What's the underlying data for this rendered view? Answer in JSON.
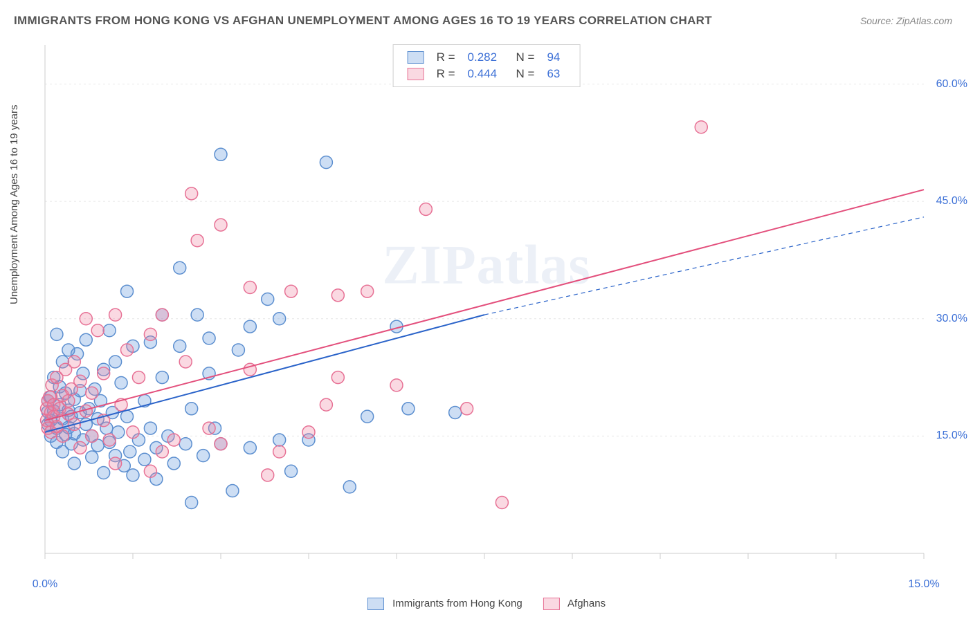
{
  "title": "IMMIGRANTS FROM HONG KONG VS AFGHAN UNEMPLOYMENT AMONG AGES 16 TO 19 YEARS CORRELATION CHART",
  "source": "Source: ZipAtlas.com",
  "watermark": "ZIPatlas",
  "ylabel": "Unemployment Among Ages 16 to 19 years",
  "chart": {
    "type": "scatter",
    "background_color": "#ffffff",
    "grid_color": "#e6e6e6",
    "axis_color": "#cccccc",
    "xlim": [
      0,
      15
    ],
    "ylim": [
      0,
      65
    ],
    "yticks": [
      15,
      30,
      45,
      60
    ],
    "ytick_labels": [
      "15.0%",
      "30.0%",
      "45.0%",
      "60.0%"
    ],
    "xticks": [
      0,
      15
    ],
    "xtick_labels": [
      "0.0%",
      "15.0%"
    ],
    "xtick_marks": [
      0,
      1.5,
      3,
      4.5,
      6,
      7.5,
      9,
      10.5,
      12,
      13.5,
      15
    ],
    "marker_radius": 9,
    "marker_stroke_width": 1.5,
    "line_width": 2,
    "series": [
      {
        "label": "Immigrants from Hong Kong",
        "fill_color": "rgba(98,152,220,0.32)",
        "stroke_color": "#5b8ecf",
        "line_color": "#2a63c9",
        "r_value": "0.282",
        "n_value": "94",
        "reg_solid_x": [
          0,
          7.5
        ],
        "reg_solid_y": [
          15.5,
          30.5
        ],
        "reg_dash_x": [
          7.5,
          15
        ],
        "reg_dash_y": [
          30.5,
          43.0
        ],
        "points": [
          [
            0.05,
            18.1
          ],
          [
            0.05,
            16.5
          ],
          [
            0.05,
            19.5
          ],
          [
            0.1,
            17.0
          ],
          [
            0.1,
            15.0
          ],
          [
            0.1,
            20.0
          ],
          [
            0.15,
            22.5
          ],
          [
            0.15,
            18.2
          ],
          [
            0.2,
            16.0
          ],
          [
            0.2,
            14.2
          ],
          [
            0.2,
            28.0
          ],
          [
            0.25,
            19.0
          ],
          [
            0.25,
            21.3
          ],
          [
            0.3,
            17.2
          ],
          [
            0.3,
            24.5
          ],
          [
            0.3,
            13.0
          ],
          [
            0.35,
            15.2
          ],
          [
            0.35,
            20.5
          ],
          [
            0.4,
            18.3
          ],
          [
            0.4,
            16.1
          ],
          [
            0.4,
            26.0
          ],
          [
            0.45,
            14.0
          ],
          [
            0.45,
            17.5
          ],
          [
            0.5,
            19.7
          ],
          [
            0.5,
            15.3
          ],
          [
            0.5,
            11.5
          ],
          [
            0.55,
            25.5
          ],
          [
            0.6,
            18.0
          ],
          [
            0.6,
            20.8
          ],
          [
            0.65,
            14.5
          ],
          [
            0.65,
            23.0
          ],
          [
            0.7,
            16.5
          ],
          [
            0.7,
            27.3
          ],
          [
            0.75,
            18.5
          ],
          [
            0.8,
            15.0
          ],
          [
            0.8,
            12.3
          ],
          [
            0.85,
            21.0
          ],
          [
            0.9,
            17.2
          ],
          [
            0.9,
            13.8
          ],
          [
            0.95,
            19.5
          ],
          [
            1.0,
            10.3
          ],
          [
            1.0,
            23.5
          ],
          [
            1.05,
            16.0
          ],
          [
            1.1,
            14.2
          ],
          [
            1.1,
            28.5
          ],
          [
            1.15,
            18.0
          ],
          [
            1.2,
            12.5
          ],
          [
            1.2,
            24.5
          ],
          [
            1.25,
            15.5
          ],
          [
            1.3,
            21.8
          ],
          [
            1.35,
            11.2
          ],
          [
            1.4,
            17.5
          ],
          [
            1.4,
            33.5
          ],
          [
            1.45,
            13.0
          ],
          [
            1.5,
            10.0
          ],
          [
            1.5,
            26.5
          ],
          [
            1.6,
            14.5
          ],
          [
            1.7,
            12.0
          ],
          [
            1.7,
            19.5
          ],
          [
            1.8,
            16.0
          ],
          [
            1.8,
            27.0
          ],
          [
            1.9,
            13.5
          ],
          [
            1.9,
            9.5
          ],
          [
            2.0,
            22.5
          ],
          [
            2.0,
            30.5
          ],
          [
            2.1,
            15.0
          ],
          [
            2.2,
            11.5
          ],
          [
            2.3,
            26.5
          ],
          [
            2.3,
            36.5
          ],
          [
            2.4,
            14.0
          ],
          [
            2.5,
            6.5
          ],
          [
            2.5,
            18.5
          ],
          [
            2.6,
            30.5
          ],
          [
            2.7,
            12.5
          ],
          [
            2.8,
            23.0
          ],
          [
            2.8,
            27.5
          ],
          [
            2.9,
            16.0
          ],
          [
            3.0,
            14.0
          ],
          [
            3.0,
            51.0
          ],
          [
            3.2,
            8.0
          ],
          [
            3.3,
            26.0
          ],
          [
            3.5,
            13.5
          ],
          [
            3.5,
            29.0
          ],
          [
            3.8,
            32.5
          ],
          [
            4.0,
            14.5
          ],
          [
            4.0,
            30.0
          ],
          [
            4.2,
            10.5
          ],
          [
            4.5,
            14.5
          ],
          [
            4.8,
            50.0
          ],
          [
            5.2,
            8.5
          ],
          [
            5.5,
            17.5
          ],
          [
            6.0,
            29.0
          ],
          [
            6.2,
            18.5
          ],
          [
            7.0,
            18.0
          ]
        ]
      },
      {
        "label": "Afghans",
        "fill_color": "rgba(240,130,160,0.30)",
        "stroke_color": "#e77195",
        "line_color": "#e34f7c",
        "r_value": "0.444",
        "n_value": "63",
        "reg_solid_x": [
          0,
          15
        ],
        "reg_solid_y": [
          17.0,
          46.5
        ],
        "reg_dash_x": null,
        "reg_dash_y": null,
        "points": [
          [
            0.03,
            18.5
          ],
          [
            0.03,
            17.0
          ],
          [
            0.05,
            19.5
          ],
          [
            0.05,
            16.0
          ],
          [
            0.08,
            20.0
          ],
          [
            0.1,
            18.0
          ],
          [
            0.1,
            15.5
          ],
          [
            0.12,
            21.5
          ],
          [
            0.15,
            17.5
          ],
          [
            0.15,
            19.0
          ],
          [
            0.2,
            16.2
          ],
          [
            0.2,
            22.5
          ],
          [
            0.25,
            18.5
          ],
          [
            0.3,
            20.2
          ],
          [
            0.3,
            15.0
          ],
          [
            0.35,
            23.5
          ],
          [
            0.4,
            17.8
          ],
          [
            0.4,
            19.5
          ],
          [
            0.45,
            21.0
          ],
          [
            0.5,
            16.5
          ],
          [
            0.5,
            24.5
          ],
          [
            0.6,
            13.5
          ],
          [
            0.6,
            22.0
          ],
          [
            0.7,
            30.0
          ],
          [
            0.7,
            18.2
          ],
          [
            0.8,
            20.5
          ],
          [
            0.8,
            15.0
          ],
          [
            0.9,
            28.5
          ],
          [
            1.0,
            17.0
          ],
          [
            1.0,
            23.0
          ],
          [
            1.1,
            14.5
          ],
          [
            1.2,
            30.5
          ],
          [
            1.2,
            11.5
          ],
          [
            1.3,
            19.0
          ],
          [
            1.4,
            26.0
          ],
          [
            1.5,
            15.5
          ],
          [
            1.6,
            22.5
          ],
          [
            1.8,
            10.5
          ],
          [
            1.8,
            28.0
          ],
          [
            2.0,
            13.0
          ],
          [
            2.0,
            30.5
          ],
          [
            2.2,
            14.5
          ],
          [
            2.4,
            24.5
          ],
          [
            2.5,
            46.0
          ],
          [
            2.6,
            40.0
          ],
          [
            2.8,
            16.0
          ],
          [
            3.0,
            42.0
          ],
          [
            3.0,
            14.0
          ],
          [
            3.5,
            23.5
          ],
          [
            3.5,
            34.0
          ],
          [
            3.8,
            10.0
          ],
          [
            4.0,
            13.0
          ],
          [
            4.2,
            33.5
          ],
          [
            4.5,
            15.5
          ],
          [
            4.8,
            19.0
          ],
          [
            5.0,
            22.5
          ],
          [
            5.0,
            33.0
          ],
          [
            5.5,
            33.5
          ],
          [
            6.0,
            21.5
          ],
          [
            6.5,
            44.0
          ],
          [
            7.2,
            18.5
          ],
          [
            7.8,
            6.5
          ],
          [
            11.2,
            54.5
          ]
        ]
      }
    ]
  },
  "legend_bottom": {
    "items": [
      {
        "label": "Immigrants from Hong Kong",
        "fill": "rgba(98,152,220,0.32)",
        "border": "#5b8ecf"
      },
      {
        "label": "Afghans",
        "fill": "rgba(240,130,160,0.30)",
        "border": "#e77195"
      }
    ]
  }
}
